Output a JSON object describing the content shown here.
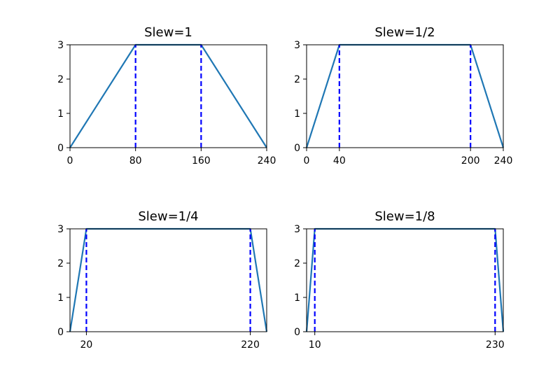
{
  "colors": {
    "line": "#1f77b4",
    "marker_line": "#0000ff",
    "axes": "#000000",
    "background": "#ffffff"
  },
  "chart_data": [
    {
      "type": "line",
      "title": "Slew=1",
      "xlabel": "",
      "ylabel": "",
      "xlim": [
        0,
        240
      ],
      "ylim": [
        0,
        3
      ],
      "xticks": [
        0,
        80,
        160,
        240
      ],
      "xtick_labels": [
        "0",
        "80",
        "160",
        "240"
      ],
      "yticks": [
        0,
        1,
        2,
        3
      ],
      "ytick_labels": [
        "0",
        "1",
        "2",
        "3"
      ],
      "x": [
        0,
        80,
        160,
        240
      ],
      "y": [
        0,
        3,
        3,
        0
      ],
      "vlines": [
        80,
        160
      ],
      "grid": false
    },
    {
      "type": "line",
      "title": "Slew=1/2",
      "xlabel": "",
      "ylabel": "",
      "xlim": [
        0,
        240
      ],
      "ylim": [
        0,
        3
      ],
      "xticks": [
        0,
        40,
        200,
        240
      ],
      "xtick_labels": [
        "0",
        "40",
        "200",
        "240"
      ],
      "yticks": [
        0,
        1,
        2,
        3
      ],
      "ytick_labels": [
        "0",
        "1",
        "2",
        "3"
      ],
      "x": [
        0,
        40,
        200,
        240
      ],
      "y": [
        0,
        3,
        3,
        0
      ],
      "vlines": [
        40,
        200
      ],
      "grid": false
    },
    {
      "type": "line",
      "title": "Slew=1/4",
      "xlabel": "",
      "ylabel": "",
      "xlim": [
        0,
        240
      ],
      "ylim": [
        0,
        3
      ],
      "xticks": [
        20,
        220
      ],
      "xtick_labels": [
        "20",
        "220"
      ],
      "yticks": [
        0,
        1,
        2,
        3
      ],
      "ytick_labels": [
        "0",
        "1",
        "2",
        "3"
      ],
      "x": [
        0,
        20,
        220,
        240
      ],
      "y": [
        0,
        3,
        3,
        0
      ],
      "vlines": [
        20,
        220
      ],
      "grid": false
    },
    {
      "type": "line",
      "title": "Slew=1/8",
      "xlabel": "",
      "ylabel": "",
      "xlim": [
        0,
        240
      ],
      "ylim": [
        0,
        3
      ],
      "xticks": [
        10,
        230
      ],
      "xtick_labels": [
        "10",
        "230"
      ],
      "yticks": [
        0,
        1,
        2,
        3
      ],
      "ytick_labels": [
        "0",
        "1",
        "2",
        "3"
      ],
      "x": [
        0,
        10,
        230,
        240
      ],
      "y": [
        0,
        3,
        3,
        0
      ],
      "vlines": [
        10,
        230
      ],
      "grid": false
    }
  ]
}
